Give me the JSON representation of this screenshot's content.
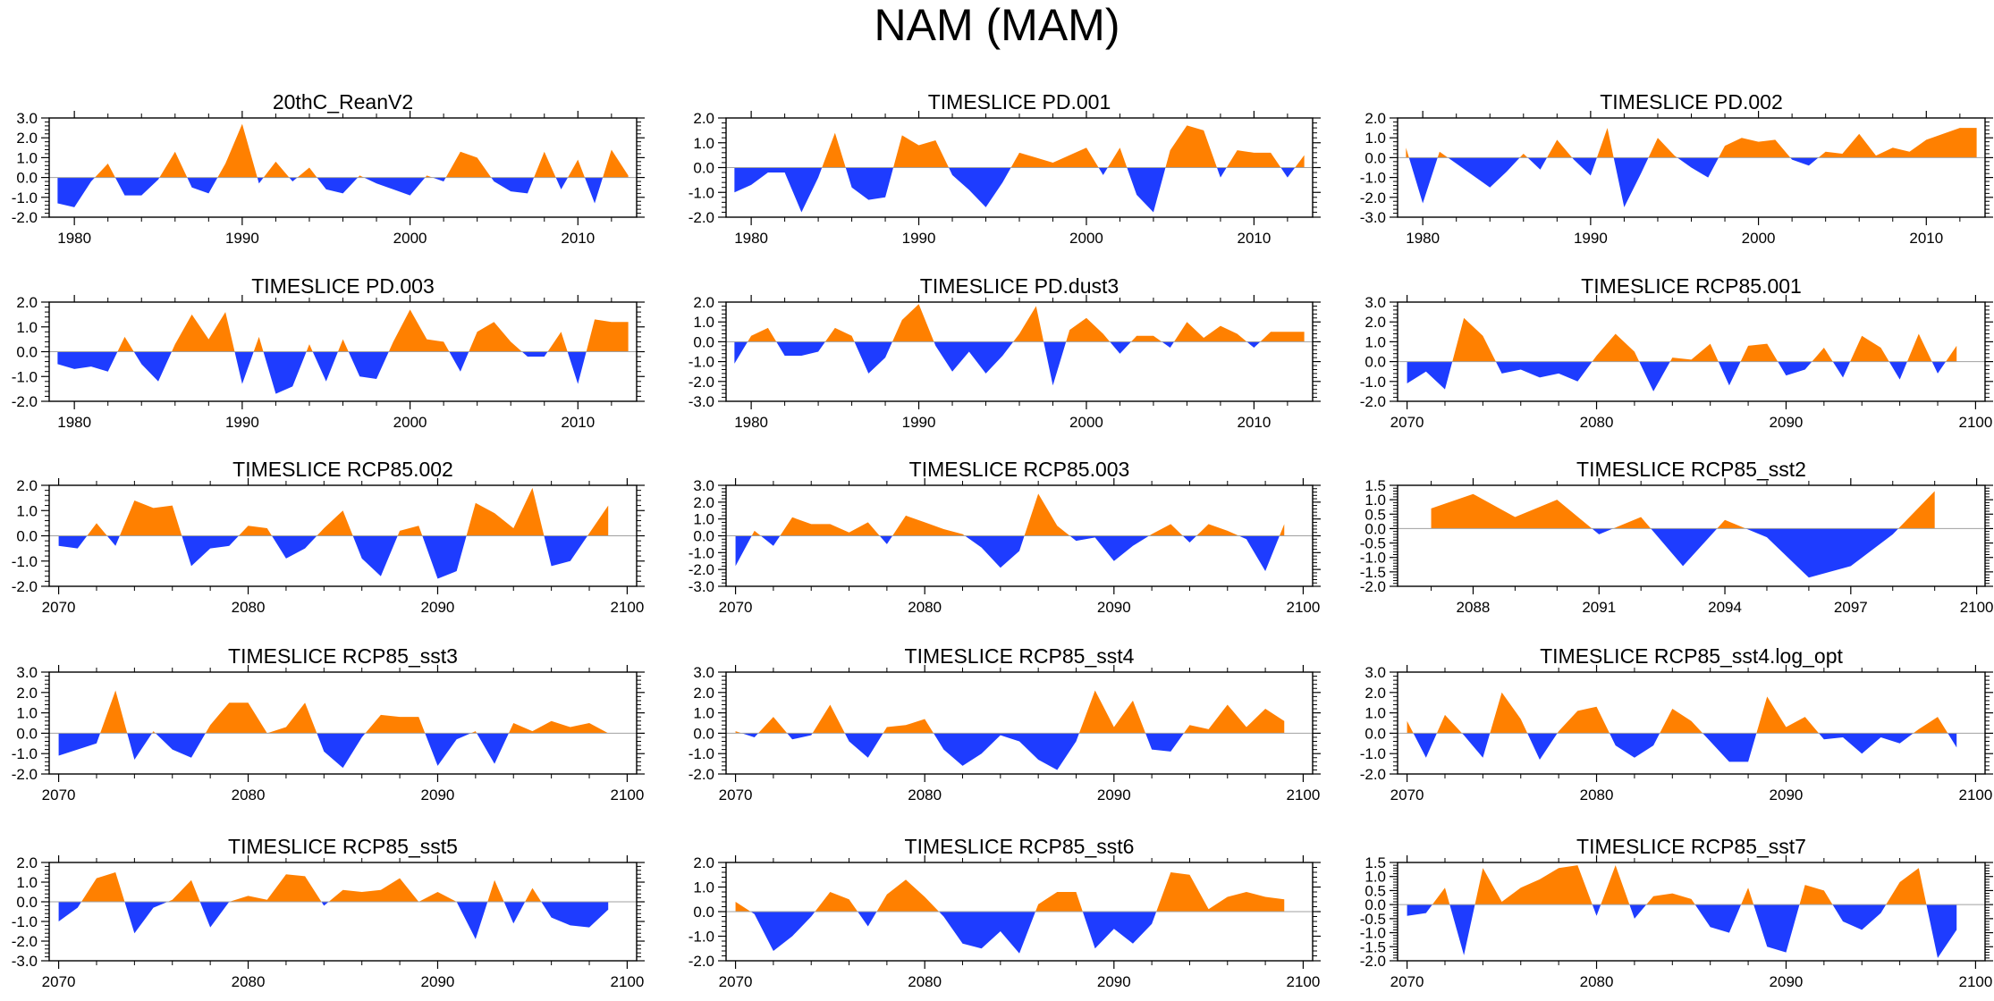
{
  "title": "NAM (MAM)",
  "colors": {
    "positive": "#ff8000",
    "negative": "#1e3cff",
    "axis": "#000000",
    "zero_line": "#a0a0a0"
  },
  "chart_data": [
    {
      "type": "area",
      "title": "20thC_ReanV2",
      "ylim": [
        -2.0,
        3.0
      ],
      "yticks": [
        "3.0",
        "2.0",
        "1.0",
        "0.0",
        "-1.0",
        "-2.0"
      ],
      "ytick_values": [
        3,
        2,
        1,
        0,
        -1,
        -2
      ],
      "xlim": [
        1978.5,
        2013.5
      ],
      "xticks": [
        1980,
        1990,
        2000,
        2010
      ],
      "x_start": 1979,
      "values": [
        -1.3,
        -1.5,
        -0.2,
        0.7,
        -0.9,
        -0.9,
        -0.1,
        1.3,
        -0.5,
        -0.8,
        0.7,
        2.7,
        -0.3,
        0.8,
        -0.2,
        0.5,
        -0.6,
        -0.8,
        0.1,
        -0.3,
        -0.6,
        -0.9,
        0.1,
        -0.2,
        1.3,
        1.0,
        -0.2,
        -0.7,
        -0.8,
        1.3,
        -0.6,
        0.9,
        -1.3,
        1.4,
        0.1
      ]
    },
    {
      "type": "area",
      "title": "TIMESLICE PD.001",
      "ylim": [
        -2.0,
        2.0
      ],
      "yticks": [
        "2.0",
        "1.0",
        "0.0",
        "-1.0",
        "-2.0"
      ],
      "ytick_values": [
        2,
        1,
        0,
        -1,
        -2
      ],
      "xlim": [
        1978.5,
        2013.5
      ],
      "xticks": [
        1980,
        1990,
        2000,
        2010
      ],
      "x_start": 1979,
      "values": [
        -1.0,
        -0.7,
        -0.2,
        -0.2,
        -1.8,
        -0.4,
        1.4,
        -0.8,
        -1.3,
        -1.2,
        1.3,
        0.9,
        1.1,
        -0.3,
        -0.9,
        -1.6,
        -0.6,
        0.6,
        0.4,
        0.2,
        0.5,
        0.8,
        -0.3,
        0.8,
        -1.1,
        -1.8,
        0.7,
        1.7,
        1.5,
        -0.4,
        0.7,
        0.6,
        0.6,
        -0.4,
        0.5
      ]
    },
    {
      "type": "area",
      "title": "TIMESLICE PD.002",
      "ylim": [
        -3.0,
        2.0
      ],
      "yticks": [
        "2.0",
        "1.0",
        "0.0",
        "-1.0",
        "-2.0",
        "-3.0"
      ],
      "ytick_values": [
        2,
        1,
        0,
        -1,
        -2,
        -3
      ],
      "xlim": [
        1978.5,
        2013.5
      ],
      "xticks": [
        1980,
        1990,
        2000,
        2010
      ],
      "x_start": 1979,
      "values": [
        0.5,
        -2.3,
        0.3,
        -0.3,
        -0.9,
        -1.5,
        -0.7,
        0.2,
        -0.6,
        0.9,
        -0.1,
        -0.9,
        1.5,
        -2.5,
        -0.8,
        1.0,
        0.1,
        -0.5,
        -1.0,
        0.6,
        1.0,
        0.8,
        0.9,
        -0.1,
        -0.4,
        0.3,
        0.2,
        1.2,
        0.1,
        0.5,
        0.3,
        0.9,
        1.2,
        1.5,
        1.5
      ]
    },
    {
      "type": "area",
      "title": "TIMESLICE PD.003",
      "ylim": [
        -2.0,
        2.0
      ],
      "yticks": [
        "2.0",
        "1.0",
        "0.0",
        "-1.0",
        "-2.0"
      ],
      "ytick_values": [
        2,
        1,
        0,
        -1,
        -2
      ],
      "xlim": [
        1978.5,
        2013.5
      ],
      "xticks": [
        1980,
        1990,
        2000,
        2010
      ],
      "x_start": 1979,
      "values": [
        -0.5,
        -0.7,
        -0.6,
        -0.8,
        0.6,
        -0.5,
        -1.2,
        0.3,
        1.5,
        0.5,
        1.6,
        -1.3,
        0.6,
        -1.7,
        -1.4,
        0.3,
        -1.2,
        0.5,
        -1.0,
        -1.1,
        0.4,
        1.7,
        0.5,
        0.4,
        -0.8,
        0.8,
        1.2,
        0.4,
        -0.2,
        -0.2,
        0.8,
        -1.3,
        1.3,
        1.2,
        1.2
      ]
    },
    {
      "type": "area",
      "title": "TIMESLICE PD.dust3",
      "ylim": [
        -3.0,
        2.0
      ],
      "yticks": [
        "2.0",
        "1.0",
        "0.0",
        "-1.0",
        "-2.0",
        "-3.0"
      ],
      "ytick_values": [
        2,
        1,
        0,
        -1,
        -2,
        -3
      ],
      "xlim": [
        1978.5,
        2013.5
      ],
      "xticks": [
        1980,
        1990,
        2000,
        2010
      ],
      "x_start": 1979,
      "values": [
        -1.1,
        0.3,
        0.7,
        -0.7,
        -0.7,
        -0.5,
        0.7,
        0.3,
        -1.6,
        -0.8,
        1.1,
        1.9,
        -0.2,
        -1.5,
        -0.5,
        -1.6,
        -0.7,
        0.4,
        1.8,
        -2.2,
        0.6,
        1.2,
        0.4,
        -0.6,
        0.3,
        0.3,
        -0.3,
        1.0,
        0.2,
        0.8,
        0.4,
        -0.3,
        0.5,
        0.5,
        0.5
      ]
    },
    {
      "type": "area",
      "title": "TIMESLICE RCP85.001",
      "ylim": [
        -2.0,
        3.0
      ],
      "yticks": [
        "3.0",
        "2.0",
        "1.0",
        "0.0",
        "-1.0",
        "-2.0"
      ],
      "ytick_values": [
        3,
        2,
        1,
        0,
        -1,
        -2
      ],
      "xlim": [
        2069.5,
        2100.5
      ],
      "xticks": [
        2070,
        2080,
        2090,
        2100
      ],
      "x_start": 2070,
      "values": [
        -1.1,
        -0.5,
        -1.4,
        2.2,
        1.3,
        -0.6,
        -0.4,
        -0.8,
        -0.6,
        -1.0,
        0.3,
        1.4,
        0.5,
        -1.5,
        0.2,
        0.1,
        0.9,
        -1.2,
        0.8,
        0.9,
        -0.7,
        -0.4,
        0.7,
        -0.8,
        1.3,
        0.7,
        -0.9,
        1.4,
        -0.6,
        0.8
      ]
    },
    {
      "type": "area",
      "title": "TIMESLICE RCP85.002",
      "ylim": [
        -2.0,
        2.0
      ],
      "yticks": [
        "2.0",
        "1.0",
        "0.0",
        "-1.0",
        "-2.0"
      ],
      "ytick_values": [
        2,
        1,
        0,
        -1,
        -2
      ],
      "xlim": [
        2069.5,
        2100.5
      ],
      "xticks": [
        2070,
        2080,
        2090,
        2100
      ],
      "x_start": 2070,
      "values": [
        -0.4,
        -0.5,
        0.5,
        -0.4,
        1.4,
        1.1,
        1.2,
        -1.2,
        -0.5,
        -0.4,
        0.4,
        0.3,
        -0.9,
        -0.5,
        0.3,
        1.0,
        -0.9,
        -1.6,
        0.2,
        0.4,
        -1.7,
        -1.4,
        1.3,
        0.9,
        0.3,
        1.9,
        -1.2,
        -1.0,
        0.1,
        1.2
      ]
    },
    {
      "type": "area",
      "title": "TIMESLICE RCP85.003",
      "ylim": [
        -3.0,
        3.0
      ],
      "yticks": [
        "3.0",
        "2.0",
        "1.0",
        "0.0",
        "-1.0",
        "-2.0",
        "-3.0"
      ],
      "ytick_values": [
        3,
        2,
        1,
        0,
        -1,
        -2,
        -3
      ],
      "xlim": [
        2069.5,
        2100.5
      ],
      "xticks": [
        2070,
        2080,
        2090,
        2100
      ],
      "x_start": 2070,
      "values": [
        -1.8,
        0.3,
        -0.6,
        1.1,
        0.7,
        0.7,
        0.2,
        0.8,
        -0.5,
        1.2,
        0.8,
        0.4,
        0.1,
        -0.7,
        -1.9,
        -0.9,
        2.5,
        0.6,
        -0.3,
        -0.1,
        -1.5,
        -0.6,
        0.1,
        0.7,
        -0.4,
        0.7,
        0.3,
        -0.2,
        -2.1,
        0.7
      ]
    },
    {
      "type": "area",
      "title": "TIMESLICE RCP85_sst2",
      "ylim": [
        -2.0,
        1.5
      ],
      "yticks": [
        "1.5",
        "1.0",
        "0.5",
        "0.0",
        "-0.5",
        "-1.0",
        "-1.5",
        "-2.0"
      ],
      "ytick_values": [
        1.5,
        1.0,
        0.5,
        0.0,
        -0.5,
        -1.0,
        -1.5,
        -2.0
      ],
      "xlim": [
        2086.2,
        2100.2
      ],
      "xticks": [
        2088,
        2091,
        2094,
        2097,
        2100
      ],
      "x_start": 2087,
      "values": [
        0.7,
        1.2,
        0.4,
        1.0,
        -0.2,
        0.4,
        -1.3,
        0.3,
        -0.3,
        -1.7,
        -1.3,
        -0.2,
        1.3
      ]
    },
    {
      "type": "area",
      "title": "TIMESLICE RCP85_sst3",
      "ylim": [
        -2.0,
        3.0
      ],
      "yticks": [
        "3.0",
        "2.0",
        "1.0",
        "0.0",
        "-1.0",
        "-2.0"
      ],
      "ytick_values": [
        3,
        2,
        1,
        0,
        -1,
        -2
      ],
      "xlim": [
        2069.5,
        2100.5
      ],
      "xticks": [
        2070,
        2080,
        2090,
        2100
      ],
      "x_start": 2070,
      "values": [
        -1.1,
        -0.8,
        -0.5,
        2.1,
        -1.3,
        0.1,
        -0.8,
        -1.2,
        0.4,
        1.5,
        1.5,
        0.0,
        0.3,
        1.5,
        -0.9,
        -1.7,
        -0.2,
        0.9,
        0.8,
        0.8,
        -1.6,
        -0.3,
        0.1,
        -1.5,
        0.5,
        0.1,
        0.6,
        0.3,
        0.5,
        0.0
      ]
    },
    {
      "type": "area",
      "title": "TIMESLICE RCP85_sst4",
      "ylim": [
        -2.0,
        3.0
      ],
      "yticks": [
        "3.0",
        "2.0",
        "1.0",
        "0.0",
        "-1.0",
        "-2.0"
      ],
      "ytick_values": [
        3,
        2,
        1,
        0,
        -1,
        -2
      ],
      "xlim": [
        2069.5,
        2100.5
      ],
      "xticks": [
        2070,
        2080,
        2090,
        2100
      ],
      "x_start": 2070,
      "values": [
        0.1,
        -0.2,
        0.8,
        -0.3,
        -0.1,
        1.4,
        -0.4,
        -1.2,
        0.3,
        0.4,
        0.7,
        -0.8,
        -1.6,
        -1.0,
        -0.1,
        -0.4,
        -1.3,
        -1.8,
        -0.4,
        2.1,
        0.3,
        1.6,
        -0.8,
        -0.9,
        0.4,
        0.2,
        1.4,
        0.3,
        1.2,
        0.6
      ]
    },
    {
      "type": "area",
      "title": "TIMESLICE RCP85_sst4.log_opt",
      "ylim": [
        -2.0,
        3.0
      ],
      "yticks": [
        "3.0",
        "2.0",
        "1.0",
        "0.0",
        "-1.0",
        "-2.0"
      ],
      "ytick_values": [
        3,
        2,
        1,
        0,
        -1,
        -2
      ],
      "xlim": [
        2069.5,
        2100.5
      ],
      "xticks": [
        2070,
        2080,
        2090,
        2100
      ],
      "x_start": 2070,
      "values": [
        0.6,
        -1.2,
        0.9,
        -0.1,
        -1.2,
        2.0,
        0.7,
        -1.3,
        0.1,
        1.1,
        1.3,
        -0.6,
        -1.2,
        -0.6,
        1.2,
        0.6,
        -0.4,
        -1.4,
        -1.4,
        1.8,
        0.3,
        0.8,
        -0.3,
        -0.2,
        -1.0,
        -0.2,
        -0.5,
        0.2,
        0.8,
        -0.7
      ]
    },
    {
      "type": "area",
      "title": "TIMESLICE RCP85_sst5",
      "ylim": [
        -3.0,
        2.0
      ],
      "yticks": [
        "2.0",
        "1.0",
        "0.0",
        "-1.0",
        "-2.0",
        "-3.0"
      ],
      "ytick_values": [
        2,
        1,
        0,
        -1,
        -2,
        -3
      ],
      "xlim": [
        2069.5,
        2100.5
      ],
      "xticks": [
        2070,
        2080,
        2090,
        2100
      ],
      "x_start": 2070,
      "values": [
        -1.0,
        -0.3,
        1.2,
        1.5,
        -1.6,
        -0.3,
        0.1,
        1.1,
        -1.3,
        0.0,
        0.3,
        0.1,
        1.4,
        1.3,
        -0.2,
        0.6,
        0.5,
        0.6,
        1.2,
        0.0,
        0.5,
        0.0,
        -1.9,
        1.1,
        -1.1,
        0.7,
        -0.8,
        -1.2,
        -1.3,
        -0.4
      ]
    },
    {
      "type": "area",
      "title": "TIMESLICE RCP85_sst6",
      "ylim": [
        -2.0,
        2.0
      ],
      "yticks": [
        "2.0",
        "1.0",
        "0.0",
        "-1.0",
        "-2.0"
      ],
      "ytick_values": [
        2,
        1,
        0,
        -1,
        -2
      ],
      "xlim": [
        2069.5,
        2100.5
      ],
      "xticks": [
        2070,
        2080,
        2090,
        2100
      ],
      "x_start": 2070,
      "values": [
        0.4,
        -0.1,
        -1.6,
        -1.0,
        -0.2,
        0.8,
        0.5,
        -0.6,
        0.7,
        1.3,
        0.6,
        -0.2,
        -1.3,
        -1.5,
        -0.8,
        -1.7,
        0.3,
        0.8,
        0.8,
        -1.5,
        -0.7,
        -1.3,
        -0.5,
        1.6,
        1.5,
        0.1,
        0.6,
        0.8,
        0.6,
        0.5
      ]
    },
    {
      "type": "area",
      "title": "TIMESLICE RCP85_sst7",
      "ylim": [
        -2.0,
        1.5
      ],
      "yticks": [
        "1.5",
        "1.0",
        "0.5",
        "0.0",
        "-0.5",
        "-1.0",
        "-1.5",
        "-2.0"
      ],
      "ytick_values": [
        1.5,
        1.0,
        0.5,
        0.0,
        -0.5,
        -1.0,
        -1.5,
        -2.0
      ],
      "xlim": [
        2069.5,
        2100.5
      ],
      "xticks": [
        2070,
        2080,
        2090,
        2100
      ],
      "x_start": 2070,
      "values": [
        -0.4,
        -0.3,
        0.6,
        -1.8,
        1.3,
        0.1,
        0.6,
        0.9,
        1.3,
        1.4,
        -0.4,
        1.4,
        -0.5,
        0.3,
        0.4,
        0.2,
        -0.8,
        -1.0,
        0.6,
        -1.5,
        -1.7,
        0.7,
        0.5,
        -0.6,
        -0.9,
        -0.3,
        0.8,
        1.3,
        -1.9,
        -0.9
      ]
    }
  ]
}
